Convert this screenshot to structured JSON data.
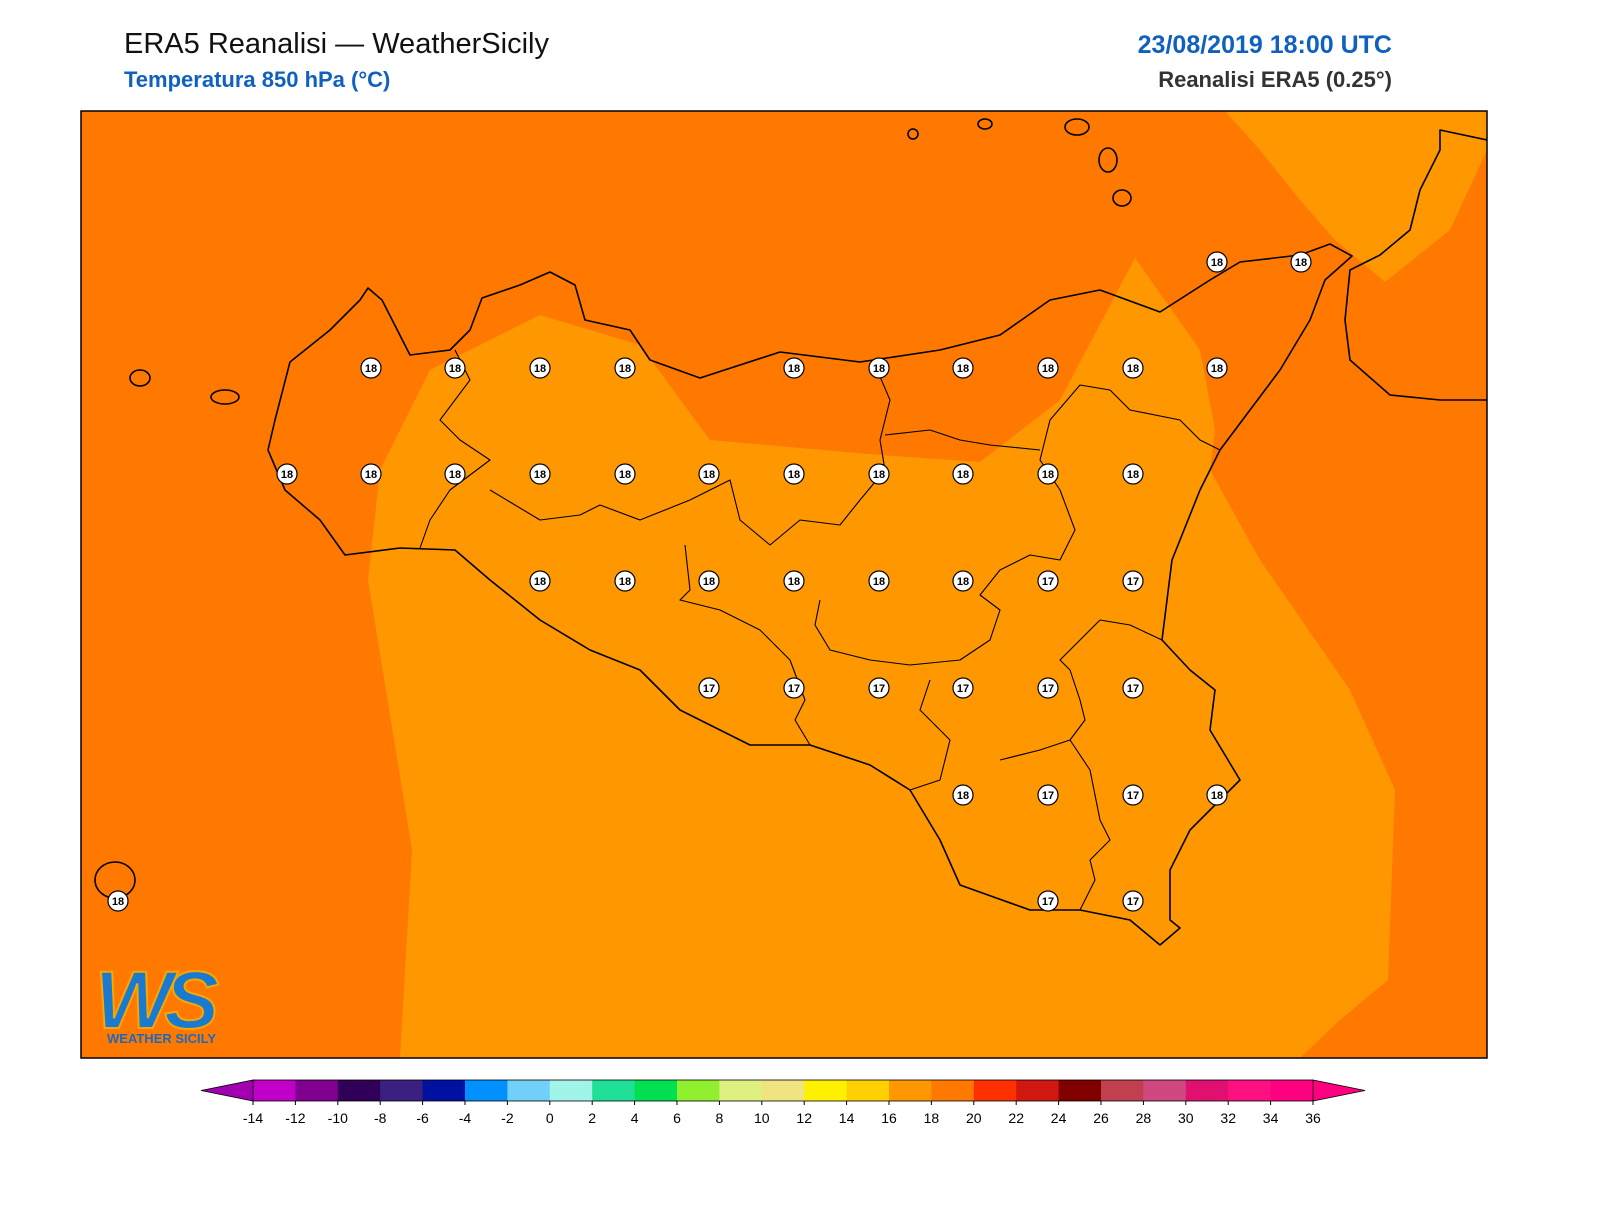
{
  "header": {
    "title": "ERA5 Reanalisi — WeatherSicily",
    "subtitle": "Temperatura 850 hPa (°C)",
    "datetime": "23/08/2019 18:00 UTC",
    "source": "Reanalisi ERA5 (0.25°)"
  },
  "map": {
    "background_color": "#ff7800",
    "band_color": "#ff9800",
    "coast_color": "#000000"
  },
  "stations": [
    18,
    18,
    18,
    18,
    18,
    18,
    18,
    18,
    18,
    18,
    18,
    18,
    18,
    18,
    18,
    18,
    18,
    18,
    18,
    18,
    18,
    18,
    18,
    18,
    18,
    18,
    18,
    18,
    18,
    17,
    17,
    17,
    17,
    17,
    17,
    17,
    17,
    18,
    17,
    17,
    18,
    18,
    17,
    17
  ],
  "colorbar": {
    "ticks": [
      -14,
      -12,
      -10,
      -8,
      -6,
      -4,
      -2,
      0,
      2,
      4,
      6,
      8,
      10,
      12,
      14,
      16,
      18,
      20,
      22,
      24,
      26,
      28,
      30,
      32,
      34,
      36
    ],
    "under_color": "#a000b0",
    "over_color": "#ff0080",
    "colors": [
      "#c000c8",
      "#800090",
      "#300058",
      "#3c2080",
      "#0010a0",
      "#0090ff",
      "#70d0f8",
      "#a0f4e8",
      "#20e098",
      "#00e050",
      "#90f030",
      "#e0f080",
      "#f0e480",
      "#fff000",
      "#ffd000",
      "#ff9800",
      "#ff7800",
      "#ff3000",
      "#d01810",
      "#800000",
      "#c04050",
      "#d04880",
      "#e01070",
      "#ff1080",
      "#ff0080"
    ]
  },
  "logo": {
    "mark": "WS",
    "name": "WEATHER SICILY"
  }
}
